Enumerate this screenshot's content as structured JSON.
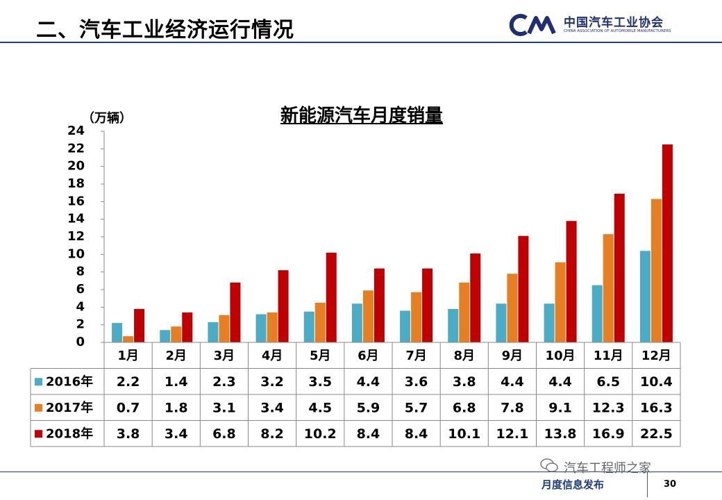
{
  "header": {
    "title": "二、汽车工业经济运行情况"
  },
  "logo": {
    "mark_text": "CAM",
    "name_cn": "中国汽车工业协会",
    "name_en": "CHINA ASSOCIATION OF AUTOMOBILE MANUFACTURERS"
  },
  "chart_data": {
    "type": "bar",
    "title": "新能源汽车月度销量",
    "ylabel": "（万辆）",
    "ylim": [
      0,
      24
    ],
    "yticks": [
      0,
      2,
      4,
      6,
      8,
      10,
      12,
      14,
      16,
      18,
      20,
      22,
      24
    ],
    "categories": [
      "1月",
      "2月",
      "3月",
      "4月",
      "5月",
      "6月",
      "7月",
      "8月",
      "9月",
      "10月",
      "11月",
      "12月"
    ],
    "series": [
      {
        "name": "2016年",
        "color": "#4bacc6",
        "values": [
          2.2,
          1.4,
          2.3,
          3.2,
          3.5,
          4.4,
          3.6,
          3.8,
          4.4,
          4.4,
          6.5,
          10.4
        ]
      },
      {
        "name": "2017年",
        "color": "#e67e22",
        "values": [
          0.7,
          1.8,
          3.1,
          3.4,
          4.5,
          5.9,
          5.7,
          6.8,
          7.8,
          9.1,
          12.3,
          16.3
        ]
      },
      {
        "name": "2018年",
        "color": "#c00000",
        "values": [
          3.8,
          3.4,
          6.8,
          8.2,
          10.2,
          8.4,
          8.4,
          10.1,
          12.1,
          13.8,
          16.9,
          22.5
        ]
      }
    ],
    "grid": false,
    "legend": "table-left"
  },
  "footer": {
    "label": "月度信息发布",
    "page_number": "30",
    "watermark": "汽车工程师之家"
  }
}
